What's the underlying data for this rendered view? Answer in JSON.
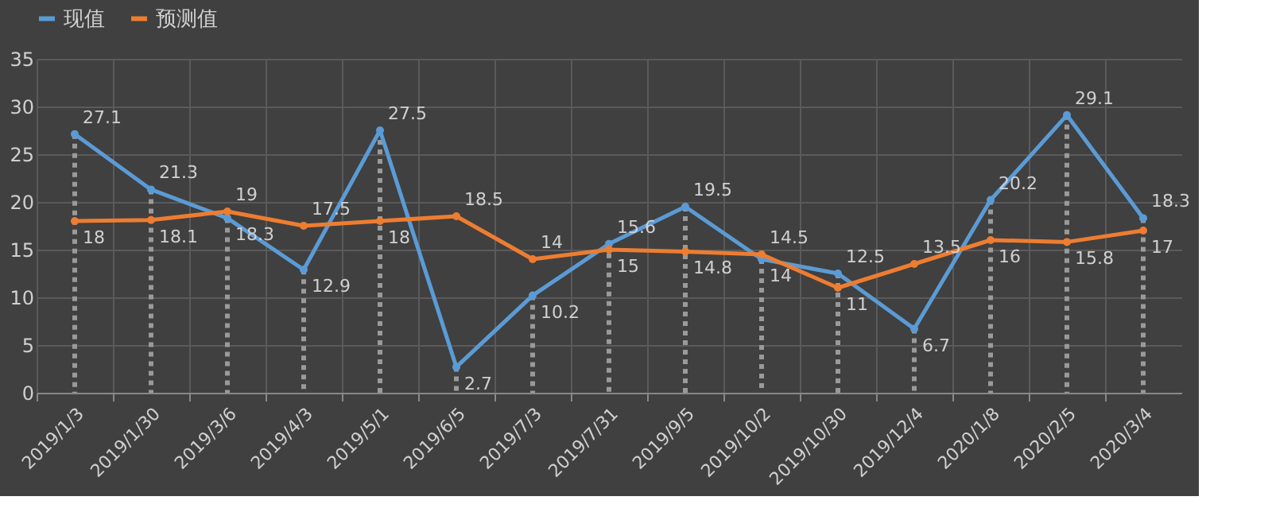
{
  "chart_data": {
    "type": "line",
    "categories": [
      "2019/1/3",
      "2019/1/30",
      "2019/3/6",
      "2019/4/3",
      "2019/5/1",
      "2019/6/5",
      "2019/7/3",
      "2019/7/31",
      "2019/9/5",
      "2019/10/2",
      "2019/10/30",
      "2019/12/4",
      "2020/1/8",
      "2020/2/5",
      "2020/3/4"
    ],
    "series": [
      {
        "name": "现值",
        "color": "#5b9bd5",
        "values": [
          27.1,
          21.3,
          18.3,
          12.9,
          27.5,
          2.7,
          10.2,
          15.6,
          19.5,
          14,
          12.5,
          6.7,
          20.2,
          29.1,
          18.3
        ]
      },
      {
        "name": "预测值",
        "color": "#ed7d31",
        "values": [
          18,
          18.1,
          19,
          17.5,
          18,
          18.5,
          14,
          15,
          14.8,
          14.5,
          11,
          13.5,
          16,
          15.8,
          17
        ]
      }
    ],
    "ylim": [
      0,
      35
    ],
    "yticks": [
      0,
      5,
      10,
      15,
      20,
      25,
      30,
      35
    ],
    "grid": true,
    "legend": "top",
    "data_labels": true,
    "marker": "circle",
    "line_style": "solid"
  }
}
